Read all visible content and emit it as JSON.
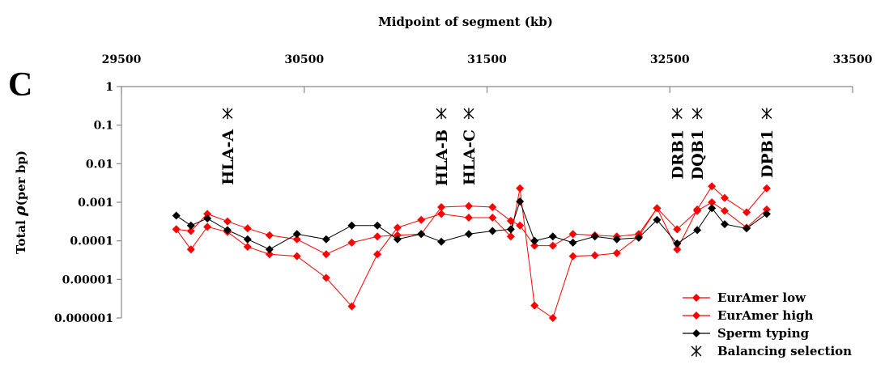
{
  "chart_data": {
    "type": "line",
    "panel_label": "C",
    "xlabel": "Midpoint of segment (kb)",
    "ylabel_prefix": "Total ",
    "ylabel_symbol": "ρ",
    "ylabel_suffix": "(per bp)",
    "x_axis_position": "top",
    "xlim": [
      29500,
      33500
    ],
    "x_ticks": [
      29500,
      30500,
      31500,
      32500,
      33500
    ],
    "y_scale": "log",
    "ylim": [
      1e-06,
      1
    ],
    "y_ticks": [
      {
        "value": 1,
        "label": "1"
      },
      {
        "value": 0.1,
        "label": "0.1"
      },
      {
        "value": 0.01,
        "label": "0.01"
      },
      {
        "value": 0.001,
        "label": "0.001"
      },
      {
        "value": 0.0001,
        "label": "0.0001"
      },
      {
        "value": 1e-05,
        "label": "0.00001"
      },
      {
        "value": 1e-06,
        "label": "0.000001"
      }
    ],
    "grid": false,
    "legend_position": "bottom-right",
    "series": [
      {
        "name": "EurAmer low",
        "color": "#ff0000",
        "marker": "diamond",
        "x": [
          29800,
          29880,
          29970,
          30080,
          30190,
          30310,
          30460,
          30620,
          30760,
          30900,
          31010,
          31140,
          31250,
          31400,
          31530,
          31630,
          31680,
          31760,
          31860,
          31970,
          32090,
          32210,
          32330,
          32430,
          32540,
          32650,
          32730,
          32800,
          32920,
          33030
        ],
        "y": [
          0.0002,
          6e-05,
          0.00023,
          0.00017,
          7e-05,
          4.5e-05,
          4e-05,
          1.1e-05,
          2e-06,
          4.5e-05,
          0.00022,
          0.00035,
          0.0005,
          0.0004,
          0.0004,
          0.00013,
          0.0023,
          2.1e-06,
          1e-06,
          4e-05,
          4.2e-05,
          4.8e-05,
          0.00013,
          0.0007,
          6e-05,
          0.00065,
          0.0026,
          0.0013,
          0.00055,
          0.0023
        ]
      },
      {
        "name": "EurAmer high",
        "color": "#ff0000",
        "marker": "diamond",
        "x": [
          29800,
          29880,
          29970,
          30080,
          30190,
          30310,
          30460,
          30620,
          30760,
          30900,
          31010,
          31140,
          31250,
          31400,
          31530,
          31630,
          31680,
          31760,
          31860,
          31970,
          32090,
          32210,
          32330,
          32430,
          32540,
          32650,
          32730,
          32800,
          32920,
          33030
        ],
        "y": [
          0.0002,
          0.00018,
          0.0005,
          0.00032,
          0.00021,
          0.00014,
          0.00011,
          4.5e-05,
          9e-05,
          0.00013,
          0.00014,
          0.00015,
          0.00075,
          0.0008,
          0.00075,
          0.00033,
          0.00025,
          7.5e-05,
          7.5e-05,
          0.00015,
          0.00014,
          0.00013,
          0.00015,
          0.0007,
          0.0002,
          0.0006,
          0.001,
          0.0006,
          0.00022,
          0.00065
        ]
      },
      {
        "name": "Sperm typing",
        "color": "#000000",
        "marker": "diamond",
        "x": [
          29800,
          29880,
          29970,
          30080,
          30190,
          30310,
          30460,
          30620,
          30760,
          30900,
          31010,
          31140,
          31250,
          31400,
          31530,
          31630,
          31680,
          31760,
          31860,
          31970,
          32090,
          32210,
          32330,
          32430,
          32540,
          32650,
          32730,
          32800,
          32920,
          33030
        ],
        "y": [
          0.00045,
          0.00025,
          0.00038,
          0.00019,
          0.00011,
          6e-05,
          0.00015,
          0.00011,
          0.00025,
          0.00025,
          0.00011,
          0.00015,
          9.5e-05,
          0.00015,
          0.00018,
          0.0002,
          0.00105,
          0.0001,
          0.00013,
          9e-05,
          0.00013,
          0.00011,
          0.00012,
          0.00035,
          8.5e-05,
          0.00019,
          0.0007,
          0.00027,
          0.00021,
          0.0005
        ]
      },
      {
        "name": "Balancing selection",
        "color": "#000000",
        "marker": "asterisk",
        "x": [
          30080,
          31250,
          31400,
          32540,
          32650,
          33030
        ],
        "y": [
          0.2,
          0.2,
          0.2,
          0.2,
          0.2,
          0.2
        ]
      }
    ],
    "annotations": [
      {
        "text": "HLA-A",
        "x": 30080
      },
      {
        "text": "HLA-B",
        "x": 31250
      },
      {
        "text": "HLA-C",
        "x": 31400
      },
      {
        "text": "DRB1",
        "x": 32540
      },
      {
        "text": "DQB1",
        "x": 32650
      },
      {
        "text": "DPB1",
        "x": 33030
      }
    ]
  }
}
